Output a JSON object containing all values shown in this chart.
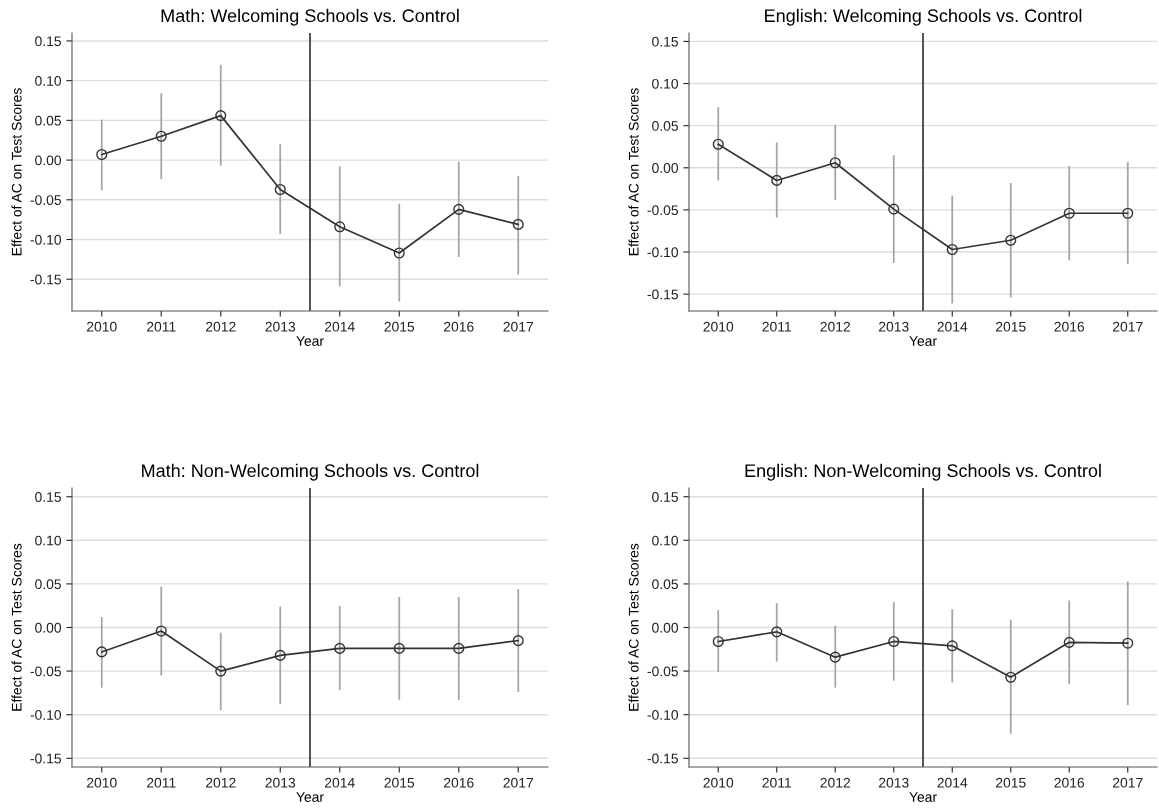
{
  "chart_data": [
    {
      "type": "line",
      "title": "Math: Welcoming Schools vs. Control",
      "xlabel": "Year",
      "ylabel": "Effect of AC on Test Scores",
      "x": [
        2010,
        2011,
        2012,
        2013,
        2014,
        2015,
        2016,
        2017
      ],
      "xlim": [
        2009.5,
        2017.5
      ],
      "xticks": [
        2010,
        2011,
        2012,
        2013,
        2014,
        2015,
        2016,
        2017
      ],
      "ylim": [
        -0.19,
        0.16
      ],
      "yticks": [
        {
          "value": -0.15,
          "label": "-0.15"
        },
        {
          "value": -0.1,
          "label": "-0.10"
        },
        {
          "value": -0.05,
          "label": "-0.05"
        },
        {
          "value": 0,
          "label": "0.00"
        },
        {
          "value": 0.05,
          "label": "0.05"
        },
        {
          "value": 0.1,
          "label": "0.10"
        },
        {
          "value": 0.15,
          "label": "0.15"
        }
      ],
      "grid": "y",
      "marker": "circle",
      "line_style": "solid",
      "series": [
        {
          "color": "#333333",
          "values": [
            0.007,
            0.03,
            0.056,
            -0.037,
            -0.084,
            -0.117,
            -0.062,
            -0.081
          ],
          "errors": [
            [
              -0.038,
              0.051
            ],
            [
              -0.024,
              0.084
            ],
            [
              -0.007,
              0.12
            ],
            [
              -0.093,
              0.02
            ],
            [
              -0.159,
              -0.008
            ],
            [
              -0.178,
              -0.055
            ],
            [
              -0.122,
              -0.002
            ],
            [
              -0.144,
              -0.02
            ]
          ]
        }
      ],
      "ref_lines": [
        {
          "axis": "x",
          "value": 2013.5,
          "color": "#333333"
        }
      ]
    },
    {
      "type": "line",
      "title": "English: Welcoming Schools vs. Control",
      "xlabel": "Year",
      "ylabel": "Effect of AC on Test Scores",
      "x": [
        2010,
        2011,
        2012,
        2013,
        2014,
        2015,
        2016,
        2017
      ],
      "xlim": [
        2009.5,
        2017.5
      ],
      "xticks": [
        2010,
        2011,
        2012,
        2013,
        2014,
        2015,
        2016,
        2017
      ],
      "ylim": [
        -0.17,
        0.16
      ],
      "yticks": [
        {
          "value": -0.15,
          "label": "-0.15"
        },
        {
          "value": -0.1,
          "label": "-0.10"
        },
        {
          "value": -0.05,
          "label": "-0.05"
        },
        {
          "value": 0,
          "label": "0.00"
        },
        {
          "value": 0.05,
          "label": "0.05"
        },
        {
          "value": 0.1,
          "label": "0.10"
        },
        {
          "value": 0.15,
          "label": "0.15"
        }
      ],
      "grid": "y",
      "marker": "circle",
      "line_style": "solid",
      "series": [
        {
          "color": "#333333",
          "values": [
            0.028,
            -0.015,
            0.006,
            -0.049,
            -0.097,
            -0.086,
            -0.054,
            -0.054
          ],
          "errors": [
            [
              -0.015,
              0.072
            ],
            [
              -0.059,
              0.03
            ],
            [
              -0.038,
              0.051
            ],
            [
              -0.113,
              0.015
            ],
            [
              -0.161,
              -0.033
            ],
            [
              -0.154,
              -0.018
            ],
            [
              -0.11,
              0.002
            ],
            [
              -0.114,
              0.007
            ]
          ]
        }
      ],
      "ref_lines": [
        {
          "axis": "x",
          "value": 2013.5,
          "color": "#333333"
        }
      ]
    },
    {
      "type": "line",
      "title": "Math: Non-Welcoming Schools vs. Control",
      "xlabel": "Year",
      "ylabel": "Effect of AC on Test Scores",
      "x": [
        2010,
        2011,
        2012,
        2013,
        2014,
        2015,
        2016,
        2017
      ],
      "xlim": [
        2009.5,
        2017.5
      ],
      "xticks": [
        2010,
        2011,
        2012,
        2013,
        2014,
        2015,
        2016,
        2017
      ],
      "ylim": [
        -0.16,
        0.16
      ],
      "yticks": [
        {
          "value": -0.15,
          "label": "-0.15"
        },
        {
          "value": -0.1,
          "label": "-0.10"
        },
        {
          "value": -0.05,
          "label": "-0.05"
        },
        {
          "value": 0,
          "label": "0.00"
        },
        {
          "value": 0.05,
          "label": "0.05"
        },
        {
          "value": 0.1,
          "label": "0.10"
        },
        {
          "value": 0.15,
          "label": "0.15"
        }
      ],
      "grid": "y",
      "marker": "circle",
      "line_style": "solid",
      "series": [
        {
          "color": "#333333",
          "values": [
            -0.028,
            -0.004,
            -0.05,
            -0.032,
            -0.024,
            -0.024,
            -0.024,
            -0.015
          ],
          "errors": [
            [
              -0.069,
              0.012
            ],
            [
              -0.055,
              0.047
            ],
            [
              -0.095,
              -0.006
            ],
            [
              -0.088,
              0.024
            ],
            [
              -0.072,
              0.025
            ],
            [
              -0.083,
              0.035
            ],
            [
              -0.083,
              0.035
            ],
            [
              -0.074,
              0.044
            ]
          ]
        }
      ],
      "ref_lines": [
        {
          "axis": "x",
          "value": 2013.5,
          "color": "#333333"
        }
      ]
    },
    {
      "type": "line",
      "title": "English: Non-Welcoming Schools vs. Control",
      "xlabel": "Year",
      "ylabel": "Effect of AC on Test Scores",
      "x": [
        2010,
        2011,
        2012,
        2013,
        2014,
        2015,
        2016,
        2017
      ],
      "xlim": [
        2009.5,
        2017.5
      ],
      "xticks": [
        2010,
        2011,
        2012,
        2013,
        2014,
        2015,
        2016,
        2017
      ],
      "ylim": [
        -0.16,
        0.16
      ],
      "yticks": [
        {
          "value": -0.15,
          "label": "-0.15"
        },
        {
          "value": -0.1,
          "label": "-0.10"
        },
        {
          "value": -0.05,
          "label": "-0.05"
        },
        {
          "value": 0,
          "label": "0.00"
        },
        {
          "value": 0.05,
          "label": "0.05"
        },
        {
          "value": 0.1,
          "label": "0.10"
        },
        {
          "value": 0.15,
          "label": "0.15"
        }
      ],
      "grid": "y",
      "marker": "circle",
      "line_style": "solid",
      "series": [
        {
          "color": "#333333",
          "values": [
            -0.016,
            -0.005,
            -0.034,
            -0.016,
            -0.021,
            -0.057,
            -0.017,
            -0.018
          ],
          "errors": [
            [
              -0.051,
              0.02
            ],
            [
              -0.039,
              0.028
            ],
            [
              -0.069,
              0.002
            ],
            [
              -0.061,
              0.029
            ],
            [
              -0.063,
              0.021
            ],
            [
              -0.122,
              0.009
            ],
            [
              -0.065,
              0.031
            ],
            [
              -0.089,
              0.053
            ]
          ]
        }
      ],
      "ref_lines": [
        {
          "axis": "x",
          "value": 2013.5,
          "color": "#333333"
        }
      ]
    }
  ]
}
